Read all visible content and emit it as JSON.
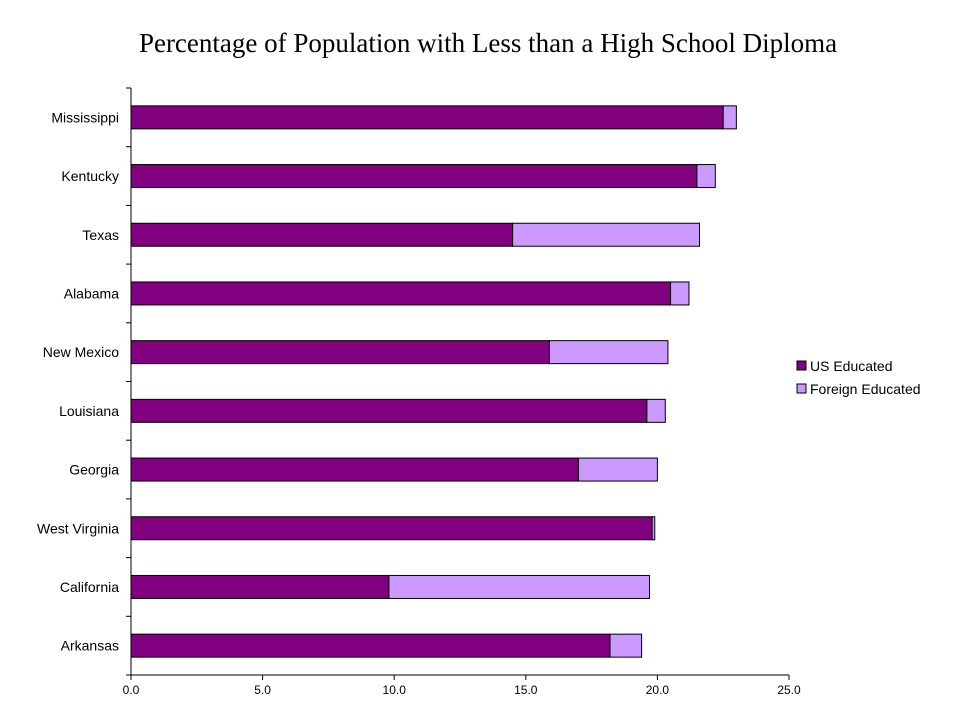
{
  "chart_data": {
    "type": "bar",
    "orientation": "horizontal",
    "stacked": true,
    "title": "Percentage of Population with Less than a High School Diploma",
    "xlabel": "",
    "ylabel": "",
    "xlim": [
      0,
      25
    ],
    "x_ticks": [
      "0.0",
      "5.0",
      "10.0",
      "15.0",
      "20.0",
      "25.0"
    ],
    "grid": false,
    "legend_position": "right",
    "categories": [
      "Mississippi",
      "Kentucky",
      "Texas",
      "Alabama",
      "New Mexico",
      "Louisiana",
      "Georgia",
      "West Virginia",
      "California",
      "Arkansas"
    ],
    "series": [
      {
        "name": "US Educated",
        "color": "#800080",
        "values": [
          22.5,
          21.5,
          14.5,
          20.5,
          15.9,
          19.6,
          17.0,
          19.8,
          9.8,
          18.2
        ]
      },
      {
        "name": "Foreign Educated",
        "color": "#cc99ff",
        "values": [
          0.5,
          0.7,
          7.1,
          0.7,
          4.5,
          0.7,
          3.0,
          0.1,
          9.9,
          1.2
        ]
      }
    ]
  }
}
